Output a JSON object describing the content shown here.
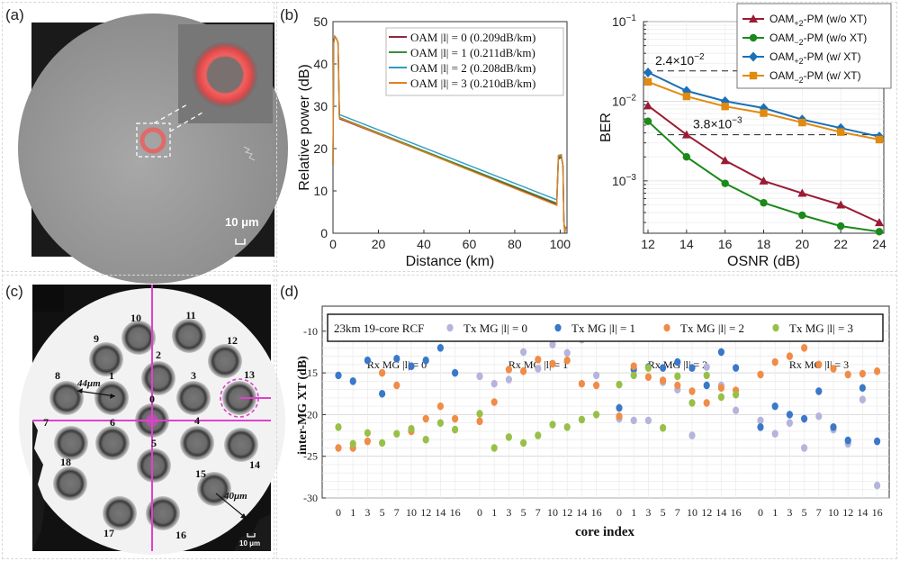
{
  "panels": {
    "a": {
      "label": "(a)",
      "scale_bar": "10 μm"
    },
    "b": {
      "label": "(b)"
    },
    "c": {
      "label": "(c)",
      "scale_bar": "10 μm",
      "dist_1": "44μm",
      "dist_2": "40μm",
      "core_labels": [
        "0",
        "1",
        "2",
        "3",
        "4",
        "5",
        "6",
        "7",
        "8",
        "9",
        "10",
        "11",
        "12",
        "13",
        "14",
        "15",
        "16",
        "17",
        "18"
      ]
    },
    "d": {
      "label": "(d)"
    }
  },
  "chart_data": [
    {
      "id": "b-left",
      "type": "line",
      "xlabel": "Distance (km)",
      "ylabel": "Relative power (dB)",
      "xlim": [
        0,
        103
      ],
      "ylim": [
        0,
        50
      ],
      "xticks": [
        "0",
        "20",
        "40",
        "60",
        "80",
        "100"
      ],
      "yticks": [
        "0",
        "10",
        "20",
        "30",
        "40",
        "50"
      ],
      "legend": "top-right",
      "series": [
        {
          "name": "OAM |l| = 0 (0.209dB/km)",
          "color": "#8b2a3e",
          "start": 27.0,
          "end": 6.9
        },
        {
          "name": "OAM |l| = 1 (0.211dB/km)",
          "color": "#3a8e3a",
          "start": 27.3,
          "end": 7.1
        },
        {
          "name": "OAM |l| = 2 (0.208dB/km)",
          "color": "#2e9cc0",
          "start": 28.0,
          "end": 7.9
        },
        {
          "name": "OAM |l| = 3 (0.210dB/km)",
          "color": "#e08020",
          "start": 27.2,
          "end": 6.6
        }
      ]
    },
    {
      "id": "b-right",
      "type": "line",
      "xlabel": "OSNR (dB)",
      "ylabel": "BER",
      "yscale": "log",
      "x": [
        12,
        14,
        16,
        18,
        20,
        22,
        24
      ],
      "xticks": [
        "12",
        "14",
        "16",
        "18",
        "20",
        "22",
        "24"
      ],
      "yticks": [
        "10^-1",
        "10^-2",
        "10^-3"
      ],
      "ylim": [
        0.00022,
        0.1
      ],
      "annotations": [
        {
          "text": "2.4×10^-2",
          "value": 0.024
        },
        {
          "text": "3.8×10^-3",
          "value": 0.0038
        }
      ],
      "legend": "top-right",
      "series": [
        {
          "name": "OAM+2-PM (w/o XT)",
          "base": "OAM",
          "sub": "+2",
          "suffix": "-PM (w/o XT)",
          "color": "#9b1b33",
          "marker": "triangle",
          "values": [
            0.0088,
            0.0038,
            0.0018,
            0.001,
            0.0007,
            0.0005,
            0.0003
          ]
        },
        {
          "name": "OAM-2-PM (w/o XT)",
          "base": "OAM",
          "sub": "−2",
          "suffix": "-PM (w/o XT)",
          "color": "#1a8a1a",
          "marker": "circle",
          "values": [
            0.0056,
            0.002,
            0.00093,
            0.00053,
            0.00037,
            0.00027,
            0.00023
          ]
        },
        {
          "name": "OAM+2-PM (w/ XT)",
          "base": "OAM",
          "sub": "+2",
          "suffix": "-PM (w/ XT)",
          "color": "#1a70b8",
          "marker": "diamond",
          "values": [
            0.023,
            0.0135,
            0.01,
            0.0082,
            0.0059,
            0.0046,
            0.0036
          ]
        },
        {
          "name": "OAM-2-PM (w/ XT)",
          "base": "OAM",
          "sub": "−2",
          "suffix": "-PM (w/ XT)",
          "color": "#e08a10",
          "marker": "square",
          "values": [
            0.0175,
            0.0115,
            0.0086,
            0.0071,
            0.0054,
            0.0041,
            0.0033
          ]
        }
      ]
    },
    {
      "id": "d",
      "type": "scatter",
      "ylabel": "inter-MG XT (dB)",
      "xlabel": "core index",
      "ylim": [
        -30,
        -7
      ],
      "yticks": [
        "-30",
        "-25",
        "-20",
        "-15",
        "-10"
      ],
      "legend_title": "23km 19-core RCF",
      "legend": [
        {
          "label": "Tx MG |l| = 0",
          "color": "#b4b4dc"
        },
        {
          "label": "Tx MG |l| = 1",
          "color": "#3a78c8"
        },
        {
          "label": "Tx MG |l| = 2",
          "color": "#f08c48"
        },
        {
          "label": "Tx MG |l| = 3",
          "color": "#98c048"
        }
      ],
      "core_ticks": [
        "0",
        "1",
        "3",
        "5",
        "7",
        "10",
        "12",
        "14",
        "16"
      ],
      "groups": [
        {
          "title": "Rx MG |l| = 0",
          "points": {
            "tx1": [
              -15.3,
              -16,
              -13.5,
              -17.5,
              -13.3,
              -14.2,
              -13.5,
              -12,
              -15
            ],
            "tx2": [
              -24,
              -24,
              -23.2,
              -15,
              -16.5,
              -22,
              -20.5,
              -19,
              -20.5
            ],
            "tx3": [
              -21.5,
              -23.5,
              -22.2,
              -23.4,
              -22.3,
              -21.7,
              -23,
              -21,
              -21.8
            ]
          }
        },
        {
          "title": "Rx MG |l| = 1",
          "points": {
            "tx0": [
              -15.4,
              -16.3,
              -15.8,
              -12.5,
              -14.5,
              -11.6,
              -12.6,
              -11,
              -15.3
            ],
            "tx2": [
              -20.8,
              -18.5,
              -14.6,
              -14.8,
              -13.4,
              -13.9,
              -13.5,
              -16.3,
              -16.5
            ],
            "tx3": [
              -19.9,
              -24,
              -22.7,
              -23.4,
              -22.5,
              -21.2,
              -21.5,
              -20.6,
              -20
            ]
          }
        },
        {
          "title": "Rx MG |l| = 2",
          "points": {
            "tx0": [
              -20.5,
              -20.7,
              -20.7,
              -16.1,
              -17,
              -22.5,
              -14.3,
              -16.5,
              -19.5
            ],
            "tx1": [
              -19.2,
              -14.6,
              -14.3,
              -14.4,
              -13.7,
              -14.4,
              -16.5,
              -12.5,
              -14.4
            ],
            "tx2": [
              -20.2,
              -14.2,
              -15.5,
              -15.9,
              -16.5,
              -17.2,
              -18.6,
              -16.8,
              -17.1
            ],
            "tx3": [
              -16.4,
              -15.3,
              -14.4,
              -21.6,
              -15.4,
              -18.6,
              -15.3,
              -17.9,
              -17.6
            ]
          }
        },
        {
          "title": "Rx MG |l| = 3",
          "points": {
            "tx0": [
              -20.7,
              -22.3,
              -21,
              -24,
              -20.2,
              -21.8,
              -23.5,
              -18.2,
              -28.5
            ],
            "tx1": [
              -21.5,
              -19,
              -20,
              -20.5,
              -17.2,
              -21.5,
              -23.1,
              -16.8,
              -23.2
            ],
            "tx2": [
              -15.2,
              -13.7,
              -13,
              -12,
              -14,
              -14.5,
              -15.2,
              -15.1,
              -14.8
            ]
          }
        }
      ]
    }
  ]
}
